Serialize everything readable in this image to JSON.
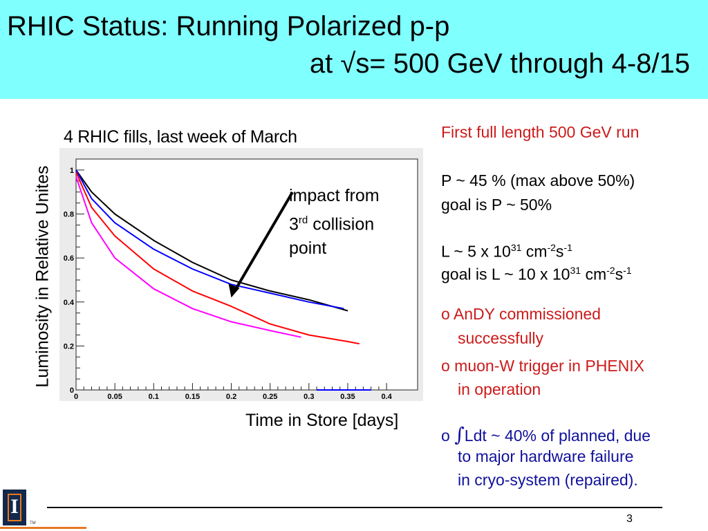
{
  "title": {
    "line1": "RHIC Status:  Running Polarized p-p",
    "line2": "at √s= 500 GeV through 4-8/15"
  },
  "chart_heading": "4 RHIC fills, last week of March",
  "annotation": {
    "line1": "impact from",
    "line2_num": "3",
    "line2_sup": "rd",
    "line2_rest": " collision",
    "line3": "point"
  },
  "colors": {
    "title_bg": "#80ffff",
    "red_text": "#cc1a1a",
    "blue_text": "#10109c",
    "black": "#000000",
    "magenta": "#ff00ff",
    "blue": "#0000ff",
    "red": "#ff0000"
  },
  "side": {
    "run": "First full length 500 GeV run",
    "pol1": "P ~ 45 %  (max above 50%)",
    "pol2": "goal  is P ~ 50%",
    "lum1_a": "L ~ 5 x 10",
    "lum1_e1": "31",
    "lum1_b": " cm",
    "lum1_e2": "-2",
    "lum1_c": "s",
    "lum1_e3": "-1",
    "lum2_a": "goal is L ~ 10 x 10",
    "lum2_e1": "31",
    "lum2_b": " cm",
    "lum2_e2": "-2",
    "lum2_c": "s",
    "lum2_e3": "-1",
    "andy1": "o AnDY commissioned",
    "andy2": "successfully",
    "muon1": "o muon-W trigger in PHENIX",
    "muon2": "in operation",
    "int_prefix": "o ",
    "int_symbol": "∫",
    "int1": "Ldt ~ 40% of planned, due",
    "int2": "to major hardware failure",
    "int3": "in cryo-system (repaired)."
  },
  "footer": {
    "page": "3",
    "logo_letter": "I",
    "trademark": "TM"
  },
  "chart_data": {
    "type": "line",
    "title": "4 RHIC fills, last week of March",
    "xlabel": "Time in Store [days]",
    "ylabel": "Luminosity in Relative Unites",
    "xlim": [
      0,
      0.44
    ],
    "ylim": [
      0,
      1.05
    ],
    "x_ticks": [
      "0",
      "0.05",
      "0.1",
      "0.15",
      "0.2",
      "0.25",
      "0.3",
      "0.35",
      "0.4"
    ],
    "y_ticks": [
      "0",
      "0.2",
      "0.4",
      "0.6",
      "0.8",
      "1"
    ],
    "series": [
      {
        "color": "black",
        "x": [
          0,
          0.02,
          0.05,
          0.1,
          0.15,
          0.2,
          0.25,
          0.3,
          0.35
        ],
        "y": [
          1.0,
          0.9,
          0.8,
          0.68,
          0.58,
          0.5,
          0.45,
          0.41,
          0.36
        ]
      },
      {
        "color": "blue",
        "x": [
          0,
          0.02,
          0.05,
          0.1,
          0.15,
          0.2,
          0.25,
          0.3,
          0.345
        ],
        "y": [
          1.0,
          0.87,
          0.76,
          0.64,
          0.55,
          0.48,
          0.44,
          0.4,
          0.37
        ]
      },
      {
        "color": "red",
        "x": [
          0,
          0.02,
          0.05,
          0.1,
          0.15,
          0.2,
          0.25,
          0.3,
          0.35,
          0.365
        ],
        "y": [
          0.99,
          0.83,
          0.7,
          0.55,
          0.45,
          0.38,
          0.3,
          0.25,
          0.22,
          0.21
        ]
      },
      {
        "color": "magenta",
        "x": [
          0,
          0.02,
          0.05,
          0.1,
          0.15,
          0.2,
          0.25,
          0.29
        ],
        "y": [
          0.97,
          0.76,
          0.6,
          0.46,
          0.37,
          0.31,
          0.27,
          0.24
        ]
      },
      {
        "color": "blue",
        "x": [
          0.31,
          0.38
        ],
        "y": [
          0,
          0
        ]
      }
    ]
  }
}
